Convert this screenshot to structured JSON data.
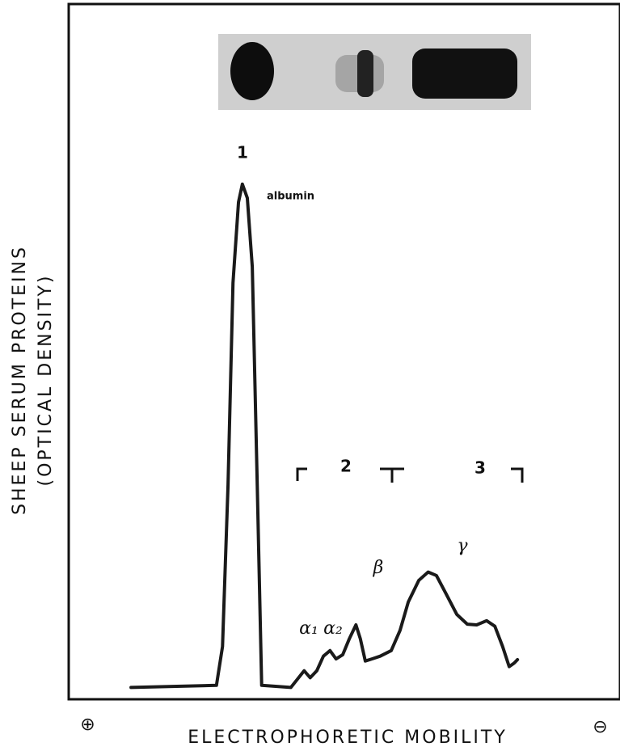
{
  "chart_data": {
    "type": "line",
    "x": [
      11.3,
      26.8,
      27.9,
      28.9,
      29.8,
      30.8,
      31.5,
      32.4,
      33.3,
      34.2,
      35.0,
      40.3,
      41.5,
      42.7,
      43.8,
      45.0,
      46.2,
      47.4,
      48.5,
      49.7,
      50.9,
      52.1,
      52.9,
      53.8,
      55.0,
      56.5,
      58.5,
      60.1,
      61.6,
      63.5,
      65.2,
      66.7,
      68.5,
      70.4,
      72.3,
      74.0,
      75.8,
      77.3,
      78.7,
      79.9,
      80.8,
      81.4
    ],
    "series": [
      {
        "color": "#1a1a1a",
        "values": [
          1.7,
          2.0,
          7.6,
          30.8,
          59.9,
          71.5,
          74.1,
          72.1,
          62.2,
          30.8,
          2.0,
          1.7,
          2.9,
          4.1,
          3.1,
          4.1,
          6.2,
          7.0,
          5.8,
          6.4,
          8.7,
          10.7,
          8.7,
          5.5,
          5.8,
          6.2,
          7.0,
          9.9,
          14.0,
          17.1,
          18.3,
          17.8,
          15.1,
          12.2,
          10.8,
          10.7,
          11.3,
          10.5,
          7.6,
          4.7,
          5.2,
          5.7
        ]
      }
    ],
    "xlim": [
      0,
      100
    ],
    "ylim": [
      0,
      100
    ],
    "y_label": [
      "SHEEP SERUM PROTEINS",
      "(OPTICAL DENSITY)"
    ],
    "x_label": "ELECTROPHORETIC MOBILITY",
    "x_ends": [
      "⊕",
      "⊖"
    ],
    "annotations": [
      "1",
      "albumin",
      "2",
      "3",
      "α₁",
      "α₂",
      "β",
      "γ"
    ]
  }
}
